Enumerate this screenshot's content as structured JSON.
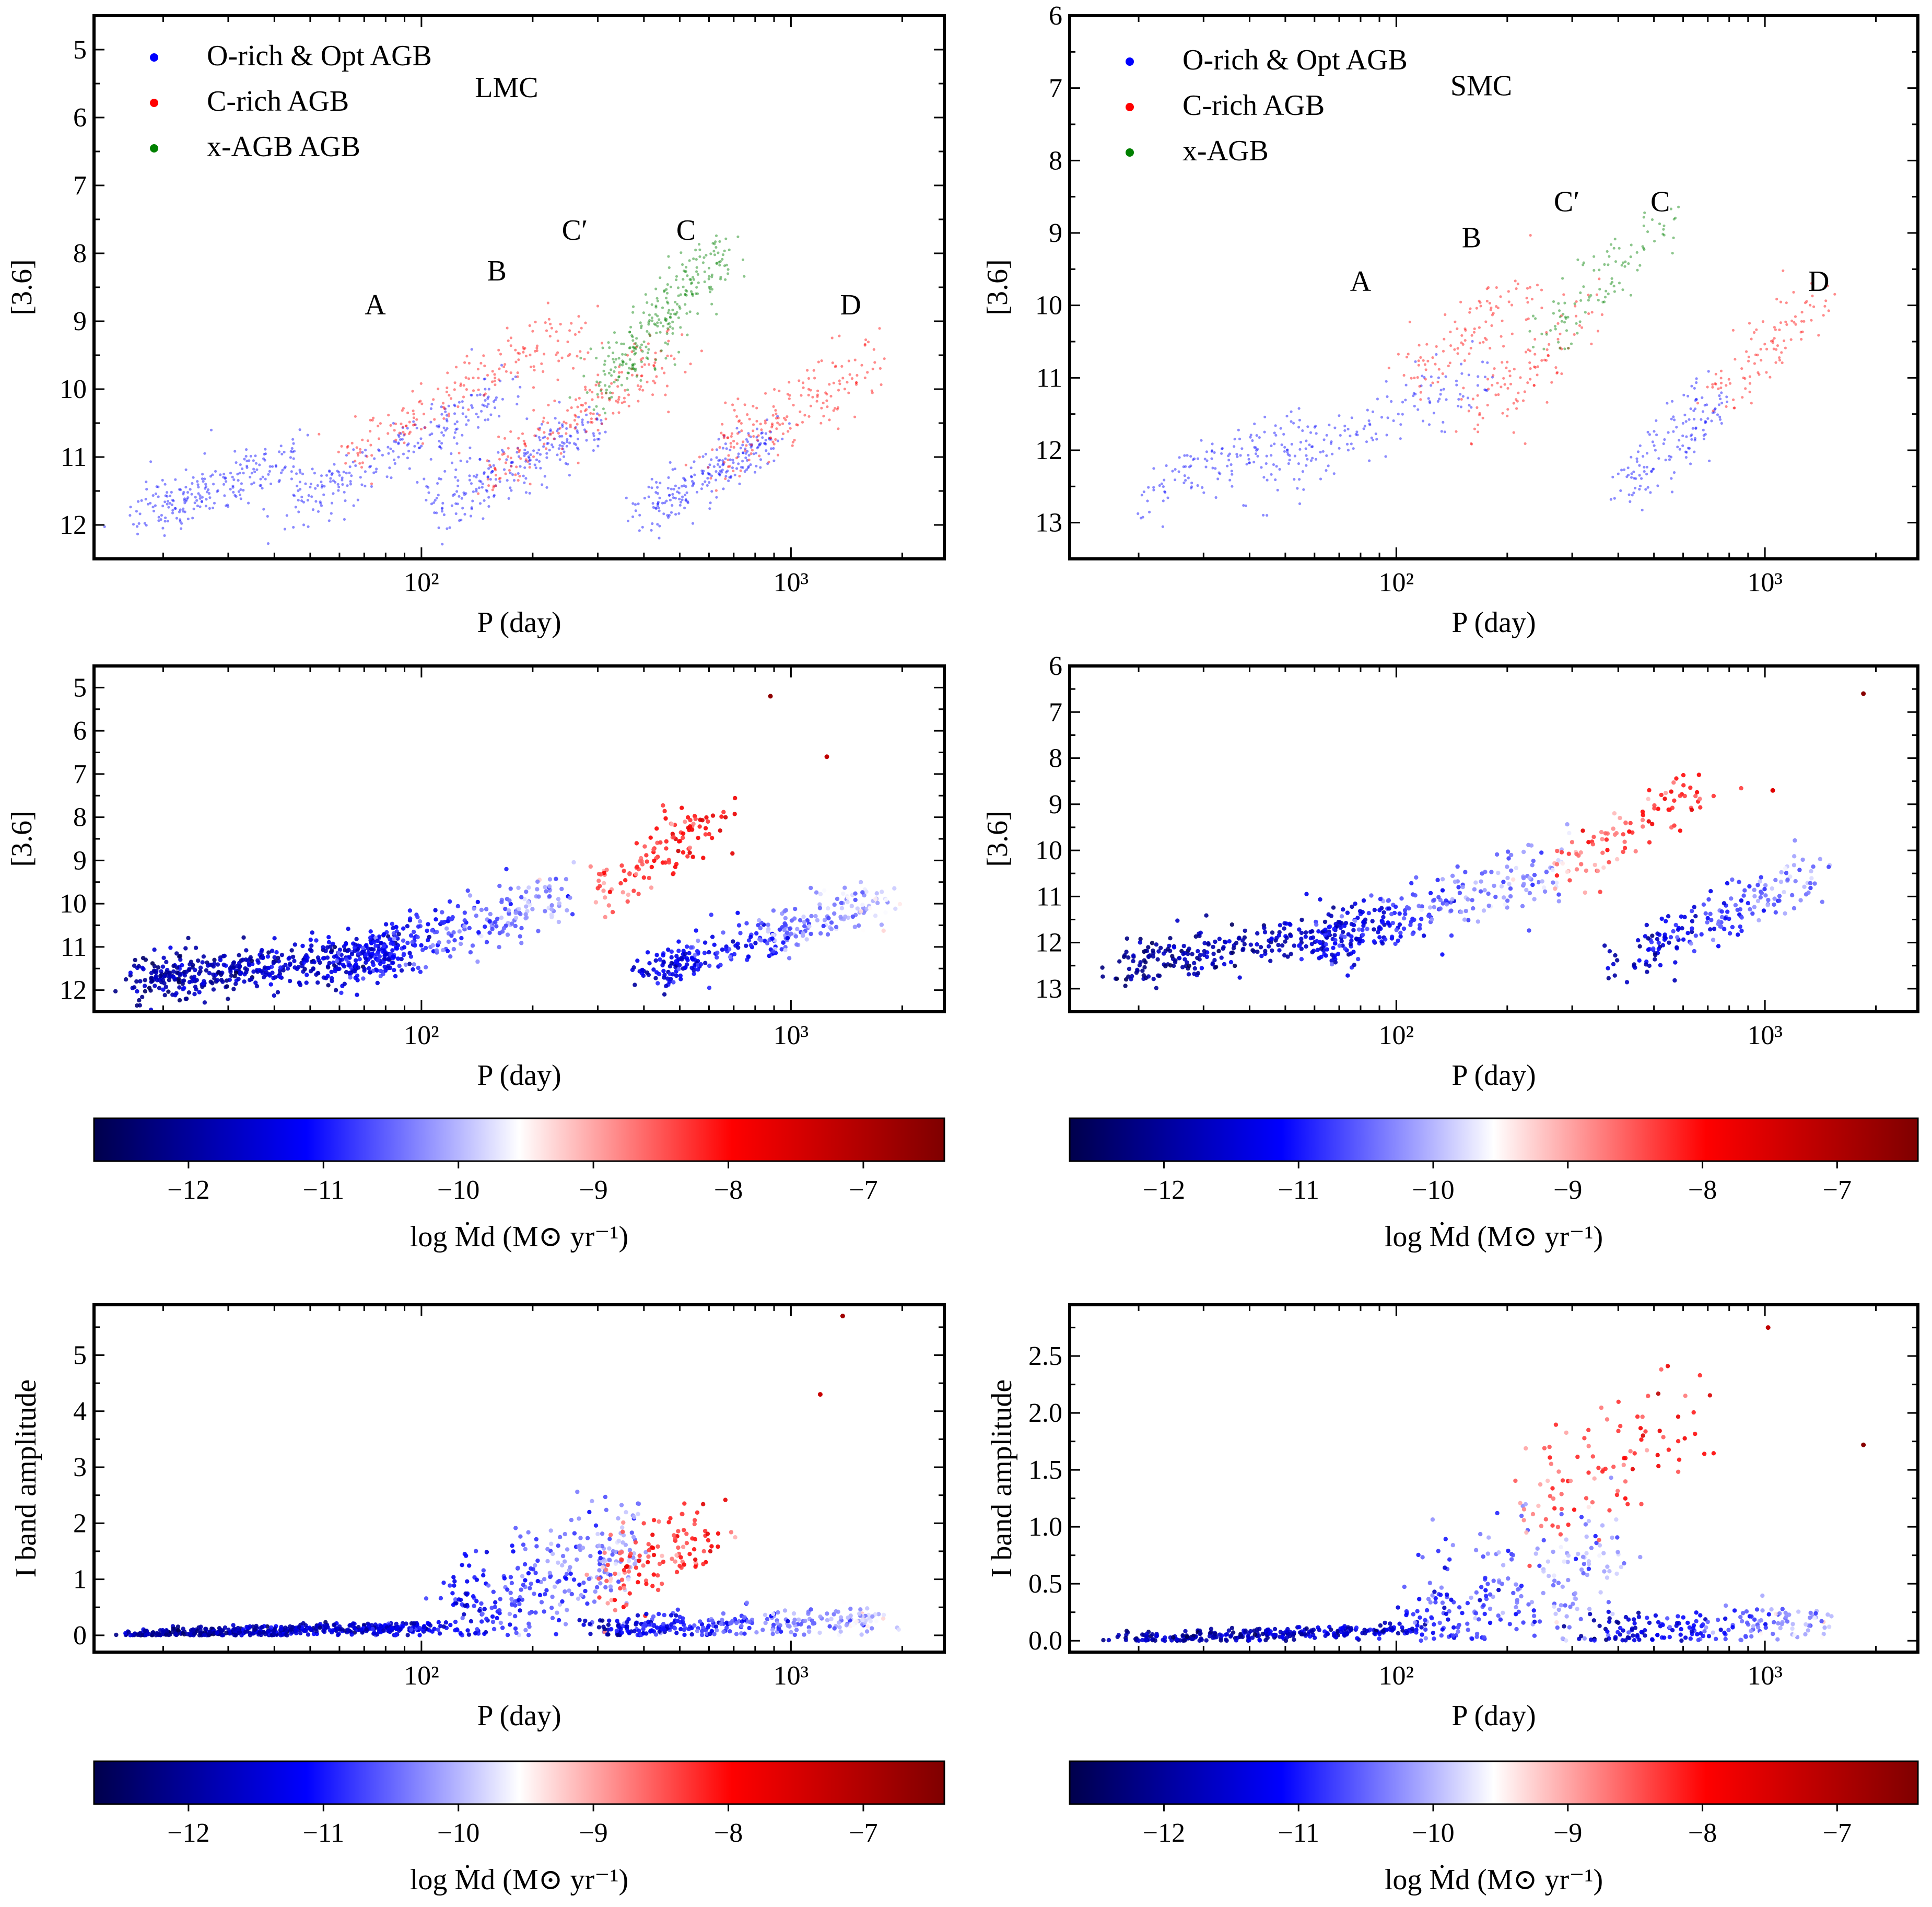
{
  "figure": {
    "lmc_label": "LMC",
    "smc_label": "SMC",
    "xlabel": "P (day)",
    "ylabel_mag": "[3.6]",
    "ylabel_amp": "I band amplitude",
    "colorbar_label": "log Ṁd (M⊙ yr⁻¹)",
    "colorbar_ticks": [
      "−12",
      "−11",
      "−10",
      "−9",
      "−8",
      "−7"
    ],
    "colorbar_range": [
      -12.7,
      -6.4
    ],
    "colormap": [
      "#00004c",
      "#0000ff",
      "#ffffff",
      "#ff0000",
      "#7f0000"
    ],
    "x_ticks": [
      "10²",
      "10³"
    ],
    "sequence_labels": [
      "A",
      "B",
      "C′",
      "C",
      "D"
    ],
    "legend_lmc": [
      "O-rich & Opt AGB",
      "C-rich AGB",
      "x-AGB AGB"
    ],
    "legend_smc": [
      "O-rich & Opt AGB",
      "C-rich AGB",
      "x-AGB"
    ],
    "legend_colors": [
      "#0000ff",
      "#ff0000",
      "#008000"
    ]
  },
  "chart_data": [
    {
      "panel": "LMC, top",
      "type": "scatter",
      "xlabel": "P (day)",
      "ylabel": "[3.6]",
      "xscale": "log",
      "xlim": [
        13,
        2600
      ],
      "ylim": [
        12.5,
        4.5
      ],
      "y_inverted": true,
      "yticks": [
        5,
        6,
        7,
        8,
        9,
        10,
        11,
        12
      ],
      "annotations": [
        {
          "text": "A",
          "x": 75,
          "y": 8.9
        },
        {
          "text": "B",
          "x": 160,
          "y": 8.4
        },
        {
          "text": "C′",
          "x": 260,
          "y": 7.8
        },
        {
          "text": "C",
          "x": 520,
          "y": 7.8
        },
        {
          "text": "D",
          "x": 1450,
          "y": 8.9
        },
        {
          "text": "LMC",
          "x": 170,
          "y": 5.7
        }
      ],
      "series": [
        {
          "name": "O-rich & Opt AGB",
          "color": "#0000ff",
          "count": 900,
          "trends": [
            {
              "x": [
                17,
                45
              ],
              "y": [
                11.9,
                11.0
              ],
              "w": 0.18
            },
            {
              "x": [
                40,
                170
              ],
              "y": [
                11.9,
                10.0
              ],
              "w": 0.2
            },
            {
              "x": [
                110,
                300
              ],
              "y": [
                11.8,
                10.4
              ],
              "w": 0.2
            },
            {
              "x": [
                400,
                900
              ],
              "y": [
                11.9,
                10.7
              ],
              "w": 0.18
            }
          ]
        },
        {
          "name": "C-rich AGB",
          "color": "#ff0000",
          "count": 550,
          "trends": [
            {
              "x": [
                60,
                280
              ],
              "y": [
                11.0,
                9.0
              ],
              "w": 0.2
            },
            {
              "x": [
                150,
                500
              ],
              "y": [
                11.3,
                9.4
              ],
              "w": 0.2
            },
            {
              "x": [
                600,
                1700
              ],
              "y": [
                11.0,
                9.6
              ],
              "w": 0.25
            }
          ]
        },
        {
          "name": "x-AGB AGB",
          "color": "#008000",
          "count": 280,
          "trends": [
            {
              "x": [
                300,
                650
              ],
              "y": [
                10.0,
                8.0
              ],
              "w": 0.22
            }
          ]
        }
      ]
    },
    {
      "panel": "SMC, top",
      "type": "scatter",
      "xlabel": "P (day)",
      "ylabel": "[3.6]",
      "xscale": "log",
      "xlim": [
        13,
        2600
      ],
      "ylim": [
        13.5,
        6
      ],
      "y_inverted": true,
      "yticks": [
        6,
        7,
        8,
        9,
        10,
        11,
        12,
        13
      ],
      "annotations": [
        {
          "text": "A",
          "x": 80,
          "y": 9.8
        },
        {
          "text": "B",
          "x": 160,
          "y": 9.2
        },
        {
          "text": "C′",
          "x": 290,
          "y": 8.7
        },
        {
          "text": "C",
          "x": 520,
          "y": 8.7
        },
        {
          "text": "D",
          "x": 1400,
          "y": 9.8
        },
        {
          "text": "SMC",
          "x": 170,
          "y": 7.1
        }
      ],
      "series": [
        {
          "name": "O-rich & Opt AGB",
          "color": "#0000ff",
          "count": 420,
          "trends": [
            {
              "x": [
                20,
                60
              ],
              "y": [
                12.6,
                11.8
              ],
              "w": 0.2
            },
            {
              "x": [
                40,
                180
              ],
              "y": [
                12.5,
                10.8
              ],
              "w": 0.25
            },
            {
              "x": [
                400,
                750
              ],
              "y": [
                12.6,
                11.3
              ],
              "w": 0.2
            }
          ]
        },
        {
          "name": "C-rich AGB",
          "color": "#ff0000",
          "count": 300,
          "trends": [
            {
              "x": [
                110,
                230
              ],
              "y": [
                11.0,
                9.7
              ],
              "w": 0.25
            },
            {
              "x": [
                160,
                340
              ],
              "y": [
                11.6,
                10.0
              ],
              "w": 0.25
            },
            {
              "x": [
                700,
                1400
              ],
              "y": [
                11.3,
                9.9
              ],
              "w": 0.25
            }
          ]
        },
        {
          "name": "x-AGB",
          "color": "#008000",
          "count": 100,
          "trends": [
            {
              "x": [
                250,
                550
              ],
              "y": [
                10.4,
                8.8
              ],
              "w": 0.2
            }
          ]
        }
      ]
    },
    {
      "panel": "LMC, middle",
      "type": "scatter",
      "xlabel": "P (day)",
      "ylabel": "[3.6]",
      "xscale": "log",
      "color_by": "log Ṁd",
      "xlim": [
        13,
        2600
      ],
      "ylim": [
        12.5,
        4.5
      ],
      "y_inverted": true,
      "yticks": [
        5,
        6,
        7,
        8,
        9,
        10,
        11,
        12
      ],
      "points_count": 1200,
      "groups": [
        {
          "x": [
            17,
            90
          ],
          "y": [
            11.8,
            11.1
          ],
          "w": 0.25,
          "c": [
            -12.0,
            -11.3
          ],
          "f": 0.4
        },
        {
          "x": [
            60,
            250
          ],
          "y": [
            11.4,
            9.8
          ],
          "w": 0.35,
          "c": [
            -11.3,
            -10.0
          ],
          "f": 0.25
        },
        {
          "x": [
            300,
            650
          ],
          "y": [
            9.7,
            7.9
          ],
          "w": 0.3,
          "c": [
            -8.6,
            -7.9
          ],
          "f": 0.1
        },
        {
          "x": [
            400,
            1800
          ],
          "y": [
            11.7,
            9.8
          ],
          "w": 0.25,
          "c": [
            -11.6,
            -9.8
          ],
          "f": 0.25
        }
      ],
      "outliers": [
        {
          "x": 880,
          "y": 5.2,
          "c": -6.6
        },
        {
          "x": 1250,
          "y": 6.6,
          "c": -7.2
        }
      ]
    },
    {
      "panel": "SMC, middle",
      "type": "scatter",
      "xlabel": "P (day)",
      "ylabel": "[3.6]",
      "xscale": "log",
      "color_by": "log Ṁd",
      "xlim": [
        13,
        2600
      ],
      "ylim": [
        13.5,
        6
      ],
      "y_inverted": true,
      "yticks": [
        6,
        7,
        8,
        9,
        10,
        11,
        12,
        13
      ],
      "points_count": 800,
      "groups": [
        {
          "x": [
            18,
            90
          ],
          "y": [
            12.5,
            11.6
          ],
          "w": 0.25,
          "c": [
            -12.1,
            -11.4
          ],
          "f": 0.35
        },
        {
          "x": [
            60,
            280
          ],
          "y": [
            12.2,
            10.2
          ],
          "w": 0.35,
          "c": [
            -11.2,
            -10.0
          ],
          "f": 0.3
        },
        {
          "x": [
            280,
            700
          ],
          "y": [
            10.4,
            8.6
          ],
          "w": 0.3,
          "c": [
            -8.8,
            -8.0
          ],
          "f": 0.12
        },
        {
          "x": [
            400,
            1400
          ],
          "y": [
            12.5,
            10.4
          ],
          "w": 0.25,
          "c": [
            -11.8,
            -10.0
          ],
          "f": 0.23
        }
      ],
      "outliers": [
        {
          "x": 1850,
          "y": 6.6,
          "c": -6.5
        },
        {
          "x": 1050,
          "y": 8.7,
          "c": -7.6
        }
      ]
    },
    {
      "panel": "LMC, bottom",
      "type": "scatter",
      "xlabel": "P (day)",
      "ylabel": "I band amplitude",
      "xscale": "log",
      "color_by": "log Ṁd",
      "xlim": [
        13,
        2600
      ],
      "ylim": [
        -0.3,
        5.9
      ],
      "yticks": [
        0,
        1,
        2,
        3,
        4,
        5
      ],
      "points_count": 1200,
      "groups": [
        {
          "x": [
            17,
            110
          ],
          "y": [
            0.02,
            0.15
          ],
          "w": 0.05,
          "c": [
            -12.0,
            -11.3
          ],
          "f": 0.4
        },
        {
          "x": [
            120,
            400
          ],
          "y": [
            0.3,
            1.6
          ],
          "w": 0.5,
          "c": [
            -11.2,
            -10.0
          ],
          "f": 0.25
        },
        {
          "x": [
            300,
            650
          ],
          "y": [
            1.0,
            1.8
          ],
          "w": 0.4,
          "c": [
            -8.6,
            -8.0
          ],
          "f": 0.1
        },
        {
          "x": [
            300,
            1800
          ],
          "y": [
            0.1,
            0.3
          ],
          "w": 0.12,
          "c": [
            -11.5,
            -9.8
          ],
          "f": 0.25
        }
      ],
      "outliers": [
        {
          "x": 1380,
          "y": 5.7,
          "c": -6.8
        },
        {
          "x": 1200,
          "y": 4.3,
          "c": -7.3
        }
      ]
    },
    {
      "panel": "SMC, bottom",
      "type": "scatter",
      "xlabel": "P (day)",
      "ylabel": "I band amplitude",
      "xscale": "log",
      "color_by": "log Ṁd",
      "xlim": [
        13,
        2600
      ],
      "ylim": [
        -0.1,
        2.95
      ],
      "yticks": [
        0.0,
        0.5,
        1.0,
        1.5,
        2.0,
        2.5
      ],
      "points_count": 800,
      "groups": [
        {
          "x": [
            18,
            110
          ],
          "y": [
            0.01,
            0.1
          ],
          "w": 0.03,
          "c": [
            -12.1,
            -11.4
          ],
          "f": 0.35
        },
        {
          "x": [
            110,
            400
          ],
          "y": [
            0.1,
            0.7
          ],
          "w": 0.3,
          "c": [
            -11.0,
            -10.0
          ],
          "f": 0.3
        },
        {
          "x": [
            230,
            650
          ],
          "y": [
            1.2,
            1.9
          ],
          "w": 0.3,
          "c": [
            -8.7,
            -8.0
          ],
          "f": 0.12
        },
        {
          "x": [
            350,
            1400
          ],
          "y": [
            0.05,
            0.2
          ],
          "w": 0.08,
          "c": [
            -11.8,
            -10.0
          ],
          "f": 0.23
        }
      ],
      "outliers": [
        {
          "x": 1850,
          "y": 1.72,
          "c": -6.5
        },
        {
          "x": 1020,
          "y": 2.75,
          "c": -7.2
        }
      ]
    }
  ]
}
